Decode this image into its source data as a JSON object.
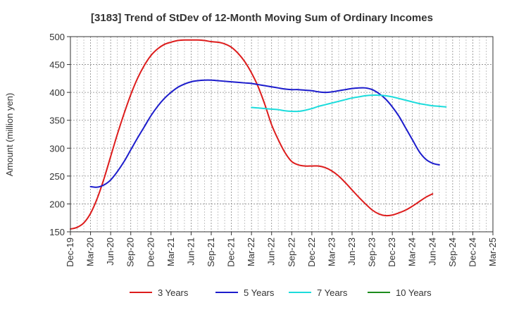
{
  "chart_data": {
    "type": "line",
    "title": "[3183]  Trend of StDev of 12-Month Moving Sum of Ordinary Incomes",
    "xlabel": "",
    "ylabel": "Amount (million yen)",
    "ylim": [
      150,
      500
    ],
    "yticks": [
      150,
      200,
      250,
      300,
      350,
      400,
      450,
      500
    ],
    "x_labels": [
      "Dec-19",
      "Mar-20",
      "Jun-20",
      "Sep-20",
      "Dec-20",
      "Mar-21",
      "Jun-21",
      "Sep-21",
      "Dec-21",
      "Mar-22",
      "Jun-22",
      "Sep-22",
      "Dec-22",
      "Mar-23",
      "Jun-23",
      "Sep-23",
      "Dec-23",
      "Mar-24",
      "Jun-24",
      "Sep-24",
      "Dec-24",
      "Mar-25"
    ],
    "x_months": [
      "Dec-19",
      "Jan-20",
      "Feb-20",
      "Mar-20",
      "Apr-20",
      "May-20",
      "Jun-20",
      "Jul-20",
      "Aug-20",
      "Sep-20",
      "Oct-20",
      "Nov-20",
      "Dec-20",
      "Jan-21",
      "Feb-21",
      "Mar-21",
      "Apr-21",
      "May-21",
      "Jun-21",
      "Jul-21",
      "Aug-21",
      "Sep-21",
      "Oct-21",
      "Nov-21",
      "Dec-21",
      "Jan-22",
      "Feb-22",
      "Mar-22",
      "Apr-22",
      "May-22",
      "Jun-22",
      "Jul-22",
      "Aug-22",
      "Sep-22",
      "Oct-22",
      "Nov-22",
      "Dec-22",
      "Jan-23",
      "Feb-23",
      "Mar-23",
      "Apr-23",
      "May-23",
      "Jun-23",
      "Jul-23",
      "Aug-23",
      "Sep-23",
      "Oct-23",
      "Nov-23",
      "Dec-23",
      "Jan-24",
      "Feb-24",
      "Mar-24",
      "Apr-24",
      "May-24",
      "Jun-24",
      "Jul-24",
      "Aug-24",
      "Sep-24",
      "Oct-24",
      "Nov-24",
      "Dec-24",
      "Jan-25",
      "Feb-25",
      "Mar-25"
    ],
    "grid": true,
    "legend_position": "bottom",
    "series": [
      {
        "name": "3 Years",
        "color": "#dd1c1c",
        "start": "Dec-19",
        "values": [
          155,
          158,
          166,
          183,
          210,
          245,
          285,
          325,
          362,
          396,
          425,
          448,
          466,
          478,
          486,
          490,
          493,
          494,
          494,
          494,
          493,
          491,
          490,
          487,
          481,
          470,
          455,
          435,
          410,
          378,
          342,
          315,
          292,
          276,
          270,
          268,
          268,
          268,
          265,
          259,
          250,
          238,
          225,
          212,
          200,
          189,
          182,
          179,
          180,
          184,
          189,
          196,
          204,
          212,
          218
        ]
      },
      {
        "name": "5 Years",
        "color": "#1c1ccc",
        "start": "Mar-20",
        "values": [
          231,
          230,
          234,
          243,
          258,
          276,
          297,
          318,
          338,
          358,
          375,
          389,
          400,
          409,
          415,
          419,
          421,
          422,
          422,
          421,
          420,
          419,
          418,
          417,
          416,
          414,
          412,
          410,
          408,
          406,
          405,
          405,
          404,
          403,
          401,
          400,
          401,
          403,
          405,
          407,
          408,
          408,
          405,
          398,
          388,
          374,
          357,
          336,
          315,
          294,
          280,
          273,
          270
        ]
      },
      {
        "name": "7 Years",
        "color": "#1cdcdc",
        "start": "Mar-22",
        "values": [
          373,
          372,
          371,
          370,
          369,
          367,
          366,
          366,
          368,
          371,
          375,
          378,
          381,
          384,
          387,
          390,
          392,
          394,
          395,
          395,
          394,
          392,
          389,
          386,
          383,
          380,
          378,
          376,
          375,
          374
        ]
      },
      {
        "name": "10 Years",
        "color": "#1c8c1c",
        "start": null,
        "values": []
      }
    ]
  }
}
